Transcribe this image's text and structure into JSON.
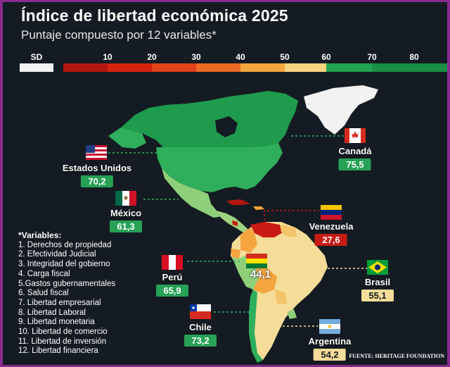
{
  "title": "Índice de libertad económica 2025",
  "subtitle": "Puntaje compuesto por 12 variables*",
  "legend": {
    "sd_label": "SD",
    "ticks": [
      "10",
      "20",
      "30",
      "40",
      "50",
      "60",
      "70",
      "80"
    ],
    "colors": {
      "sd": "#f2f2f2",
      "bands": [
        "#b3160f",
        "#d4240f",
        "#e2411a",
        "#ec6a24",
        "#f4a53e",
        "#f6d37e",
        "#20a24f",
        "#1b8e45"
      ]
    }
  },
  "countries": {
    "usa": {
      "name": "Estados Unidos",
      "value": "70,2"
    },
    "canada": {
      "name": "Canadá",
      "value": "75,5"
    },
    "mexico": {
      "name": "México",
      "value": "61,3"
    },
    "venezuela": {
      "name": "Venezuela",
      "value": "27,6"
    },
    "peru": {
      "name": "Perú",
      "value": "65,9"
    },
    "bolivia": {
      "value": "44,1"
    },
    "brasil": {
      "name": "Brasil",
      "value": "55,1"
    },
    "chile": {
      "name": "Chile",
      "value": "73,2"
    },
    "argentina": {
      "name": "Argentina",
      "value": "54,2"
    }
  },
  "value_colors": {
    "green": "#27a155",
    "yellow": "#f5dc98",
    "red": "#c81b14"
  },
  "variables_title": "*Variables:",
  "variables": [
    "1. Derechos de propiedad",
    "2. Efectividad Judicial",
    "3. Integridad del gobierno",
    "4. Carga fiscal",
    "5.Gastos gubernamentales",
    "6. Salud fiscal",
    "7. Libertad empresarial",
    "8. Libertad Laboral",
    "9. Libertad monetaria",
    "10. Libertad de comercio",
    "11. Libertad de inversión",
    "12. Libertad financiera"
  ],
  "source": "FUENTE: HERITAGE FOUNDATION"
}
